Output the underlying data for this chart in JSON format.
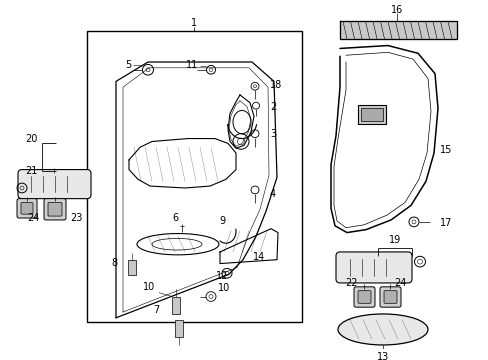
{
  "bg_color": "#ffffff",
  "line_color": "#000000",
  "fig_width": 4.89,
  "fig_height": 3.6,
  "dpi": 100,
  "font_size": 7.0
}
